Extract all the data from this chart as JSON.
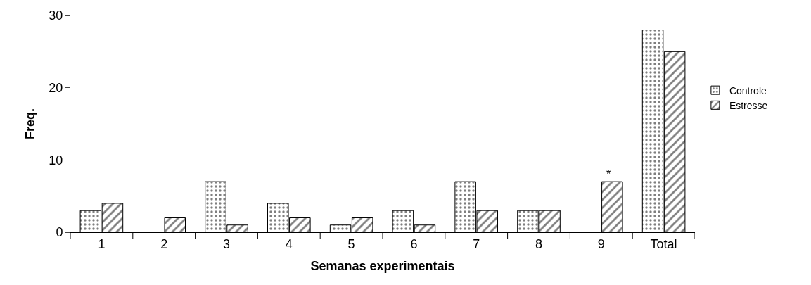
{
  "chart_data": {
    "type": "bar",
    "xlabel": "Semanas experimentais",
    "ylabel": "Freq.",
    "categories": [
      "1",
      "2",
      "3",
      "4",
      "5",
      "6",
      "7",
      "8",
      "9",
      "Total"
    ],
    "series": [
      {
        "name": "Controle",
        "color": "#000000",
        "values": [
          3,
          0,
          7,
          4,
          1,
          3,
          7,
          3,
          0,
          28
        ]
      },
      {
        "name": "Estresse",
        "color": "#000000",
        "values": [
          4,
          2,
          1,
          2,
          2,
          1,
          3,
          3,
          7,
          25
        ]
      }
    ],
    "ylim": [
      0,
      30
    ],
    "yticks": [
      0,
      10,
      20,
      30
    ],
    "legend": "right",
    "annotations": [
      {
        "text": "*",
        "x": "9",
        "y": 7
      }
    ]
  }
}
